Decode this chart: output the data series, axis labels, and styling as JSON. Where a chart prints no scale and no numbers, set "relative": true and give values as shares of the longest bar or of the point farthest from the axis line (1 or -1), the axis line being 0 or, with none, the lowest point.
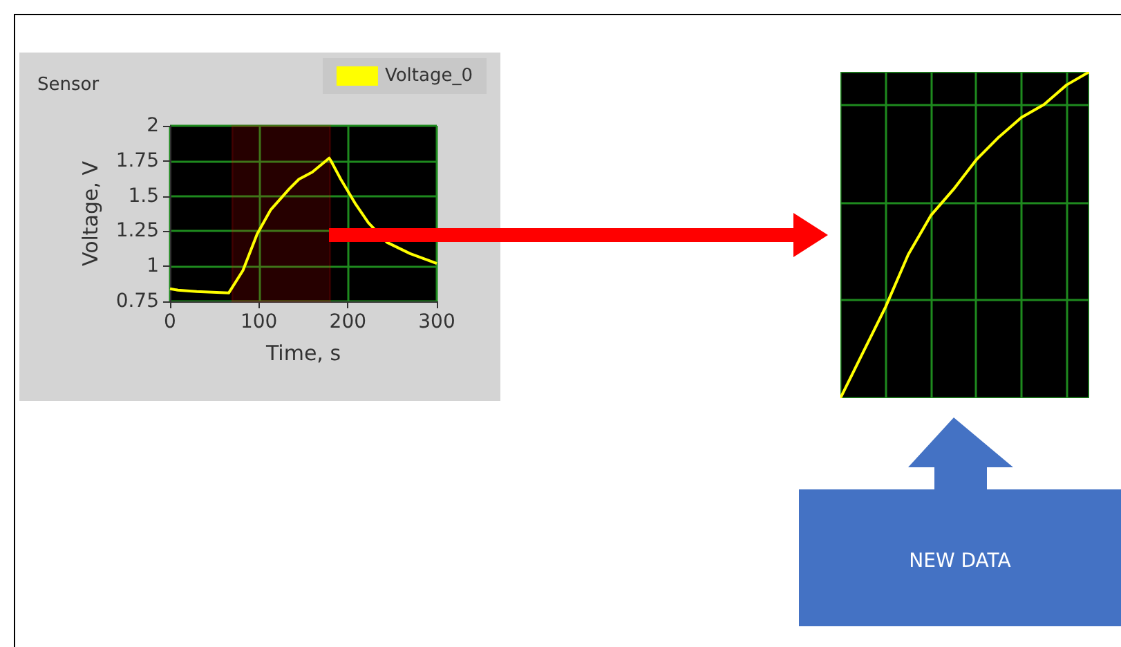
{
  "chart_data": [
    {
      "type": "line",
      "title": "Sensor",
      "xlabel": "Time, s",
      "ylabel": "Voltage, V",
      "x": [
        0,
        9,
        30,
        66,
        82,
        98,
        113,
        134,
        145,
        160,
        179,
        181,
        192,
        208,
        223,
        244,
        270,
        300
      ],
      "series": [
        {
          "name": "Voltage_0",
          "color": "#ffff00",
          "values": [
            0.84,
            0.83,
            0.82,
            0.81,
            0.97,
            1.23,
            1.4,
            1.55,
            1.62,
            1.67,
            1.77,
            1.75,
            1.62,
            1.45,
            1.31,
            1.17,
            1.09,
            1.02
          ]
        }
      ],
      "xlim": [
        0,
        300
      ],
      "xticks": [
        0,
        100,
        200,
        300
      ],
      "ylim": [
        0.75,
        2
      ],
      "yticks": [
        0.75,
        1,
        1.25,
        1.5,
        1.75,
        2
      ],
      "grid": true,
      "legend": "top right",
      "bands": [
        {
          "axis": "x",
          "from": 70,
          "to": 180,
          "color": "#ff0000"
        }
      ]
    },
    {
      "type": "line",
      "relative": true,
      "categories": [
        null,
        null,
        null,
        null,
        null,
        null,
        null,
        null,
        null,
        null,
        null,
        null
      ],
      "series": [
        {
          "color": "#ffff00",
          "values": [
            0,
            0.14,
            0.28,
            0.44,
            0.56,
            0.64,
            0.73,
            0.8,
            0.86,
            0.9,
            0.96,
            1
          ]
        }
      ],
      "grid": true,
      "annotations": [
        "NEW DATA"
      ]
    }
  ]
}
